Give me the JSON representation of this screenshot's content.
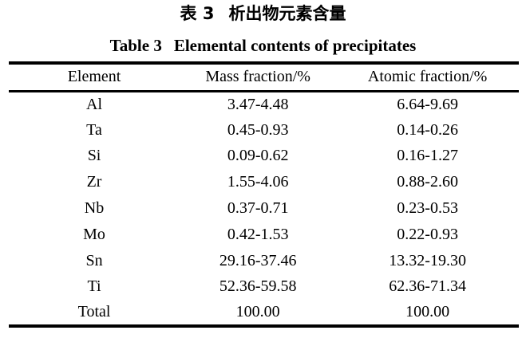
{
  "page": {
    "background_color": "#ffffff",
    "text_color": "#000000",
    "rule_color": "#000000"
  },
  "captions": {
    "chinese_label": "表 3",
    "chinese_title": "析出物元素含量",
    "english_label": "Table 3",
    "english_title": "Elemental contents of precipitates"
  },
  "table": {
    "columns": [
      "Element",
      "Mass fraction/%",
      "Atomic fraction/%"
    ],
    "rows": [
      [
        "Al",
        "3.47-4.48",
        "6.64-9.69"
      ],
      [
        "Ta",
        "0.45-0.93",
        "0.14-0.26"
      ],
      [
        "Si",
        "0.09-0.62",
        "0.16-1.27"
      ],
      [
        "Zr",
        "1.55-4.06",
        "0.88-2.60"
      ],
      [
        "Nb",
        "0.37-0.71",
        "0.23-0.53"
      ],
      [
        "Mo",
        "0.42-1.53",
        "0.22-0.93"
      ],
      [
        "Sn",
        "29.16-37.46",
        "13.32-19.30"
      ],
      [
        "Ti",
        "52.36-59.58",
        "62.36-71.34"
      ],
      [
        "Total",
        "100.00",
        "100.00"
      ]
    ]
  },
  "chart_data": {
    "type": "table",
    "title": "Table 3 Elemental contents of precipitates / 表 3 析出物元素含量",
    "columns": [
      "Element",
      "Mass fraction/%",
      "Atomic fraction/%"
    ],
    "rows": [
      [
        "Al",
        "3.47-4.48",
        "6.64-9.69"
      ],
      [
        "Ta",
        "0.45-0.93",
        "0.14-0.26"
      ],
      [
        "Si",
        "0.09-0.62",
        "0.16-1.27"
      ],
      [
        "Zr",
        "1.55-4.06",
        "0.88-2.60"
      ],
      [
        "Nb",
        "0.37-0.71",
        "0.23-0.53"
      ],
      [
        "Mo",
        "0.42-1.53",
        "0.22-0.93"
      ],
      [
        "Sn",
        "29.16-37.46",
        "13.32-19.30"
      ],
      [
        "Ti",
        "52.36-59.58",
        "62.36-71.34"
      ],
      [
        "Total",
        "100.00",
        "100.00"
      ]
    ]
  }
}
